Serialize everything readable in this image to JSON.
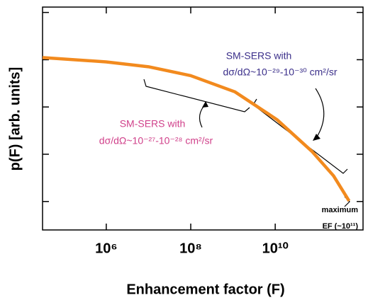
{
  "chart_data": {
    "type": "line",
    "x_label": "Enhancement factor (F)",
    "y_label": "p(F) [arb. units]",
    "x_log": true,
    "y_log": true,
    "xlim": [
      31000,
      1200000000000
    ],
    "ylim": [
      2.5e-05,
      1.3
    ],
    "xticks": [
      {
        "value": 1000000,
        "label": "10⁶"
      },
      {
        "value": 100000000,
        "label": "10⁸"
      },
      {
        "value": 10000000000,
        "label": "10¹⁰"
      }
    ],
    "yticks": [
      1,
      0.1,
      0.01,
      0.001,
      0.0001
    ],
    "x": [
      31000,
      1000000,
      10000000,
      100000000,
      1100000000,
      11000000000,
      74000000000,
      240000000000,
      560000000000
    ],
    "series": [
      {
        "color": "#f28a1e",
        "values": [
          0.111,
          0.09,
          0.071,
          0.046,
          0.021,
          0.0054,
          0.00115,
          0.00035,
          0.000103
        ]
      }
    ],
    "annotations": [
      {
        "text": "SM-SERS with",
        "color": "#3b2f8a"
      },
      {
        "text": "dσ/dΩ~10⁻²⁹-10⁻³⁰ cm²/sr",
        "color": "#3b2f8a"
      },
      {
        "text": "SM-SERS with",
        "color": "#d0408a"
      },
      {
        "text": "dσ/dΩ~10⁻²⁷-10⁻²⁸ cm²/sr",
        "color": "#d0408a"
      },
      {
        "text": "maximum",
        "color": "#000000"
      },
      {
        "text": "EF (~10¹¹)",
        "color": "#000000"
      }
    ]
  }
}
